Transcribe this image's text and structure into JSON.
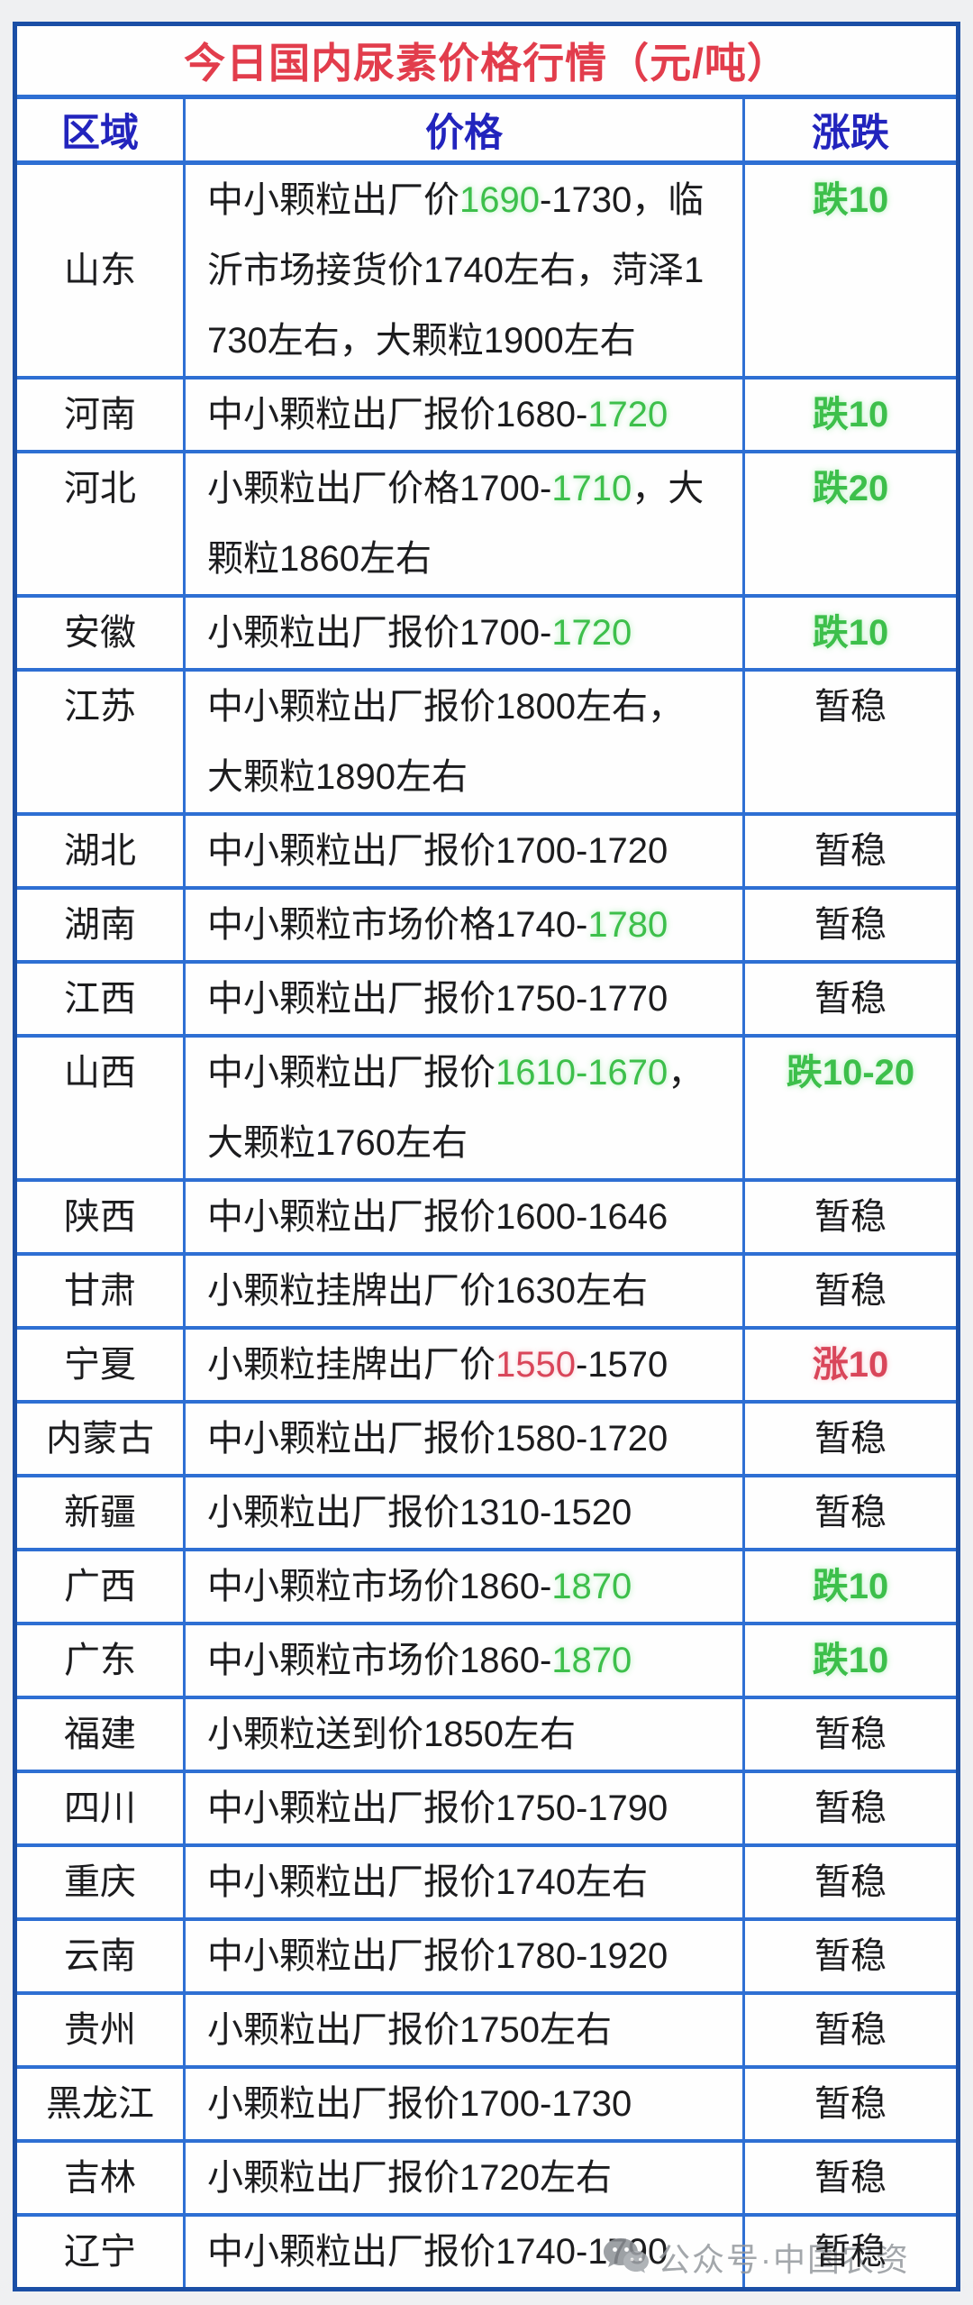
{
  "table": {
    "title": "今日国内尿素价格行情（元/吨）",
    "headers": [
      "区域",
      "价格",
      "涨跌"
    ],
    "rows": [
      {
        "region": "山东",
        "region_middle": true,
        "price": [
          {
            "t": "中小颗粒出厂价",
            "c": "k"
          },
          {
            "t": "1690",
            "c": "g"
          },
          {
            "t": "-1730，临沂市场接货价1740左右，菏泽1730左右，大颗粒1900左右",
            "c": "k"
          }
        ],
        "change": {
          "t": "跌10",
          "c": "g"
        }
      },
      {
        "region": "河南",
        "price": [
          {
            "t": "中小颗粒出厂报价1680-",
            "c": "k"
          },
          {
            "t": "1720",
            "c": "g"
          }
        ],
        "change": {
          "t": "跌10",
          "c": "g"
        }
      },
      {
        "region": "河北",
        "price": [
          {
            "t": "小颗粒出厂价格1700-",
            "c": "k"
          },
          {
            "t": "1710",
            "c": "g"
          },
          {
            "t": "，大颗粒1860左右",
            "c": "k"
          }
        ],
        "change": {
          "t": "跌20",
          "c": "g"
        }
      },
      {
        "region": "安徽",
        "price": [
          {
            "t": "小颗粒出厂报价1700-",
            "c": "k"
          },
          {
            "t": "1720",
            "c": "g"
          }
        ],
        "change": {
          "t": "跌10",
          "c": "g"
        }
      },
      {
        "region": "江苏",
        "price": [
          {
            "t": "中小颗粒出厂报价1800左右，大颗粒1890左右",
            "c": "k"
          }
        ],
        "change": {
          "t": "暂稳",
          "c": "k"
        }
      },
      {
        "region": "湖北",
        "price": [
          {
            "t": "中小颗粒出厂报价1700-1720",
            "c": "k"
          }
        ],
        "change": {
          "t": "暂稳",
          "c": "k"
        }
      },
      {
        "region": "湖南",
        "price": [
          {
            "t": "中小颗粒市场价格1740-",
            "c": "k"
          },
          {
            "t": "1780",
            "c": "g"
          }
        ],
        "change": {
          "t": "暂稳",
          "c": "k"
        }
      },
      {
        "region": "江西",
        "price": [
          {
            "t": "中小颗粒出厂报价1750-1770",
            "c": "k"
          }
        ],
        "change": {
          "t": "暂稳",
          "c": "k"
        }
      },
      {
        "region": "山西",
        "price": [
          {
            "t": "中小颗粒出厂报价",
            "c": "k"
          },
          {
            "t": "1610-1670",
            "c": "g"
          },
          {
            "t": "，大颗粒1760左右",
            "c": "k"
          }
        ],
        "change": {
          "t": "跌10-20",
          "c": "g"
        }
      },
      {
        "region": "陕西",
        "price": [
          {
            "t": "中小颗粒出厂报价1600-1646",
            "c": "k"
          }
        ],
        "change": {
          "t": "暂稳",
          "c": "k"
        }
      },
      {
        "region": "甘肃",
        "price": [
          {
            "t": "小颗粒挂牌出厂价1630左右",
            "c": "k"
          }
        ],
        "change": {
          "t": "暂稳",
          "c": "k"
        }
      },
      {
        "region": "宁夏",
        "price": [
          {
            "t": "小颗粒挂牌出厂价",
            "c": "k"
          },
          {
            "t": "1550",
            "c": "r"
          },
          {
            "t": "-1570",
            "c": "k"
          }
        ],
        "change": {
          "t": "涨10",
          "c": "r"
        }
      },
      {
        "region": "内蒙古",
        "price": [
          {
            "t": "中小颗粒出厂报价1580-1720",
            "c": "k"
          }
        ],
        "change": {
          "t": "暂稳",
          "c": "k"
        }
      },
      {
        "region": "新疆",
        "price": [
          {
            "t": "小颗粒出厂报价1310-1520",
            "c": "k"
          }
        ],
        "change": {
          "t": "暂稳",
          "c": "k"
        }
      },
      {
        "region": "广西",
        "price": [
          {
            "t": "中小颗粒市场价1860-",
            "c": "k"
          },
          {
            "t": "1870",
            "c": "g"
          }
        ],
        "change": {
          "t": "跌10",
          "c": "g"
        }
      },
      {
        "region": "广东",
        "price": [
          {
            "t": "中小颗粒市场价1860-",
            "c": "k"
          },
          {
            "t": "1870",
            "c": "g"
          }
        ],
        "change": {
          "t": "跌10",
          "c": "g"
        }
      },
      {
        "region": "福建",
        "price": [
          {
            "t": "小颗粒送到价1850左右",
            "c": "k"
          }
        ],
        "change": {
          "t": "暂稳",
          "c": "k"
        }
      },
      {
        "region": "四川",
        "price": [
          {
            "t": "中小颗粒出厂报价1750-1790",
            "c": "k"
          }
        ],
        "change": {
          "t": "暂稳",
          "c": "k"
        }
      },
      {
        "region": "重庆",
        "price": [
          {
            "t": "中小颗粒出厂报价1740左右",
            "c": "k"
          }
        ],
        "change": {
          "t": "暂稳",
          "c": "k"
        }
      },
      {
        "region": "云南",
        "price": [
          {
            "t": "中小颗粒出厂报价1780-1920",
            "c": "k"
          }
        ],
        "change": {
          "t": "暂稳",
          "c": "k"
        }
      },
      {
        "region": "贵州",
        "price": [
          {
            "t": "小颗粒出厂报价1750左右",
            "c": "k"
          }
        ],
        "change": {
          "t": "暂稳",
          "c": "k"
        }
      },
      {
        "region": "黑龙江",
        "price": [
          {
            "t": "小颗粒出厂报价1700-1730",
            "c": "k"
          }
        ],
        "change": {
          "t": "暂稳",
          "c": "k"
        }
      },
      {
        "region": "吉林",
        "price": [
          {
            "t": "小颗粒出厂报价1720左右",
            "c": "k"
          }
        ],
        "change": {
          "t": "暂稳",
          "c": "k"
        }
      },
      {
        "region": "辽宁",
        "price": [
          {
            "t": "中小颗粒出厂报价1740-1790",
            "c": "k"
          }
        ],
        "change": {
          "t": "暂稳",
          "c": "k"
        }
      }
    ]
  },
  "watermark": {
    "label": "公众号·中国农资",
    "icon": "wechat-icon"
  },
  "colors": {
    "title_red": "#e23d4c",
    "header_blue": "#2224bd",
    "green": "#3dbf4b",
    "rise_red": "#d9465a",
    "outer_border": "#1b4fa6",
    "inner_border": "#2e6fd3"
  },
  "chart_data": {
    "type": "table",
    "title": "今日国内尿素价格行情（元/吨）",
    "columns": [
      "区域",
      "价格",
      "涨跌"
    ],
    "rows": [
      [
        "山东",
        "中小颗粒出厂价1690-1730，临沂市场接货价1740左右，菏泽1730左右，大颗粒1900左右",
        "跌10"
      ],
      [
        "河南",
        "中小颗粒出厂报价1680-1720",
        "跌10"
      ],
      [
        "河北",
        "小颗粒出厂价格1700-1710，大颗粒1860左右",
        "跌20"
      ],
      [
        "安徽",
        "小颗粒出厂报价1700-1720",
        "跌10"
      ],
      [
        "江苏",
        "中小颗粒出厂报价1800左右，大颗粒1890左右",
        "暂稳"
      ],
      [
        "湖北",
        "中小颗粒出厂报价1700-1720",
        "暂稳"
      ],
      [
        "湖南",
        "中小颗粒市场价格1740-1780",
        "暂稳"
      ],
      [
        "江西",
        "中小颗粒出厂报价1750-1770",
        "暂稳"
      ],
      [
        "山西",
        "中小颗粒出厂报价1610-1670，大颗粒1760左右",
        "跌10-20"
      ],
      [
        "陕西",
        "中小颗粒出厂报价1600-1646",
        "暂稳"
      ],
      [
        "甘肃",
        "小颗粒挂牌出厂价1630左右",
        "暂稳"
      ],
      [
        "宁夏",
        "小颗粒挂牌出厂价1550-1570",
        "涨10"
      ],
      [
        "内蒙古",
        "中小颗粒出厂报价1580-1720",
        "暂稳"
      ],
      [
        "新疆",
        "小颗粒出厂报价1310-1520",
        "暂稳"
      ],
      [
        "广西",
        "中小颗粒市场价1860-1870",
        "跌10"
      ],
      [
        "广东",
        "中小颗粒市场价1860-1870",
        "跌10"
      ],
      [
        "福建",
        "小颗粒送到价1850左右",
        "暂稳"
      ],
      [
        "四川",
        "中小颗粒出厂报价1750-1790",
        "暂稳"
      ],
      [
        "重庆",
        "中小颗粒出厂报价1740左右",
        "暂稳"
      ],
      [
        "云南",
        "中小颗粒出厂报价1780-1920",
        "暂稳"
      ],
      [
        "贵州",
        "小颗粒出厂报价1750左右",
        "暂稳"
      ],
      [
        "黑龙江",
        "小颗粒出厂报价1700-1730",
        "暂稳"
      ],
      [
        "吉林",
        "小颗粒出厂报价1720左右",
        "暂稳"
      ],
      [
        "辽宁",
        "中小颗粒出厂报价1740-1790",
        "暂稳"
      ]
    ]
  }
}
